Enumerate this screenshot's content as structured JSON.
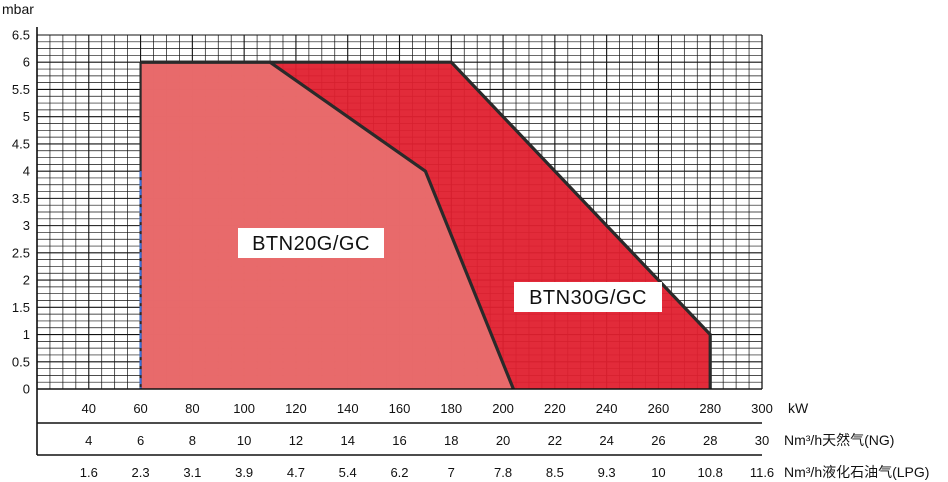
{
  "chart_data": {
    "type": "area",
    "y_unit": "mbar",
    "x_unit": "kW",
    "ylim": [
      0,
      6.5
    ],
    "xlim": [
      20,
      300
    ],
    "y_ticks": [
      "0",
      "0.5",
      "1",
      "1.5",
      "2",
      "2.5",
      "3",
      "3.5",
      "4",
      "4.5",
      "5",
      "5.5",
      "6",
      "6.5"
    ],
    "x_ticks": [
      "40",
      "60",
      "80",
      "100",
      "120",
      "140",
      "160",
      "180",
      "200",
      "220",
      "240",
      "260",
      "280",
      "300"
    ],
    "ng_axis": {
      "label": "Nm³/h天然气(NG)",
      "ticks": [
        "4",
        "6",
        "8",
        "10",
        "12",
        "14",
        "16",
        "18",
        "20",
        "22",
        "24",
        "26",
        "28",
        "30"
      ]
    },
    "lpg_axis": {
      "label": "Nm³/h液化石油气(LPG)",
      "ticks": [
        "1.6",
        "2.3",
        "3.1",
        "3.9",
        "4.7",
        "5.4",
        "6.2",
        "7",
        "7.8",
        "8.5",
        "9.3",
        "10",
        "10.8",
        "11.6"
      ]
    },
    "series": [
      {
        "name": "BTN30G/GC",
        "color": "#e0202f",
        "points": [
          [
            60,
            0
          ],
          [
            60,
            6
          ],
          [
            180,
            6
          ],
          [
            280,
            1
          ],
          [
            280,
            0
          ]
        ]
      },
      {
        "name": "BTN20G/GC",
        "color": "#e87070",
        "points": [
          [
            60,
            0
          ],
          [
            60,
            6
          ],
          [
            110,
            6
          ],
          [
            170,
            4
          ],
          [
            204,
            0
          ]
        ]
      }
    ],
    "grid": true
  }
}
